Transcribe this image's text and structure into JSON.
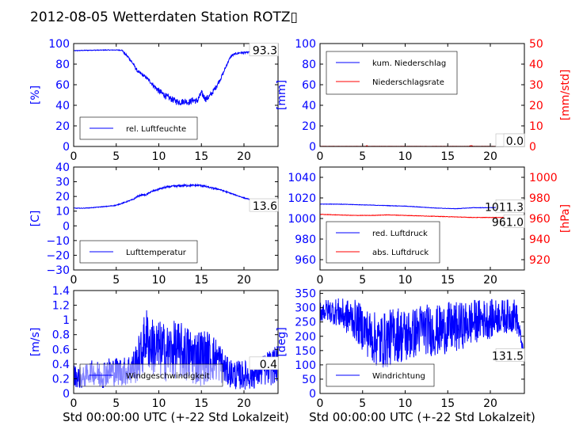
{
  "figure": {
    "title": "2012-08-05 Wetterdaten Station ROTZ▯",
    "xlabel": "Std 00:00:00 UTC (+-22 Std Lokalzeit)"
  },
  "colors": {
    "blue": "#0000ff",
    "red": "#ff0000",
    "light_blue": "#8080ff",
    "black": "#000000"
  },
  "chart_data": [
    {
      "type": "line",
      "xlim": [
        0,
        24
      ],
      "ylim": [
        0,
        100
      ],
      "xticks": [
        0,
        5,
        10,
        15,
        20
      ],
      "yticks": [
        0,
        20,
        40,
        60,
        80,
        100
      ],
      "ylabel": "[%]",
      "value_label": "93.3",
      "legend": {
        "placement": "lower-center",
        "entries": [
          "rel. Luftfeuchte"
        ]
      },
      "series": [
        {
          "name": "rel. Luftfeuchte",
          "color": "#0000ff",
          "x": [
            0,
            1,
            2,
            3,
            4,
            5,
            5.7,
            6,
            6.5,
            7,
            7.5,
            8,
            8.5,
            9,
            9.5,
            10,
            10.5,
            11,
            11.5,
            12,
            12.5,
            13,
            13.5,
            14,
            14.5,
            15,
            15.5,
            16,
            16.5,
            17,
            17.5,
            18,
            18.5,
            19,
            19.5,
            20,
            21,
            22,
            23,
            24
          ],
          "y": [
            93,
            93.3,
            93.5,
            93.6,
            93.7,
            93.7,
            93.5,
            90,
            86,
            80,
            73,
            70,
            67,
            63,
            58,
            54,
            51,
            48,
            46,
            44,
            43,
            44,
            43,
            45,
            44,
            52,
            46,
            49,
            55,
            62,
            70,
            80,
            88,
            90,
            91,
            91,
            92,
            93,
            93.3,
            93.3
          ],
          "noise": [
            0.3,
            0.3,
            0.3,
            0.3,
            0.3,
            0.3,
            0.5,
            1,
            1.5,
            1.5,
            1.5,
            1.5,
            1.5,
            2,
            2.5,
            3,
            3,
            3,
            3,
            3,
            3,
            3,
            3,
            3,
            3,
            3,
            3,
            3,
            2.5,
            2,
            2,
            1.5,
            1,
            1,
            1,
            1,
            0.5,
            0.5,
            0.3,
            0.3
          ]
        }
      ]
    },
    {
      "type": "line",
      "xlim": [
        0,
        24
      ],
      "ylim": [
        0,
        100
      ],
      "ylim_right": [
        0,
        50
      ],
      "xticks": [
        0,
        5,
        10,
        15,
        20
      ],
      "yticks": [
        0,
        20,
        40,
        60,
        80,
        100
      ],
      "yticks_right": [
        0,
        10,
        20,
        30,
        40,
        50
      ],
      "ylabel": "[mm]",
      "ylabel_right": "[mm/std]",
      "value_label": "0.0",
      "value_label_right": "0.0",
      "legend": {
        "placement": "top-left",
        "entries": [
          "kum. Niederschlag",
          "Niederschlagsrate"
        ]
      },
      "series": [
        {
          "name": "kum. Niederschlag",
          "color": "#0000ff",
          "axis": "left",
          "x": [
            0,
            24
          ],
          "y": [
            0,
            0
          ],
          "noise": [
            0,
            0
          ]
        },
        {
          "name": "Niederschlagsrate",
          "color": "#ff0000",
          "axis": "right",
          "x": [
            0,
            5.4,
            5.5,
            5.6,
            17.5,
            17.6,
            17.8,
            18,
            24
          ],
          "y": [
            0.05,
            0.05,
            0.5,
            0.05,
            0.05,
            0.3,
            0.4,
            0.05,
            0.05
          ],
          "noise": [
            0.03,
            0.03,
            0,
            0.03,
            0.03,
            0,
            0,
            0.03,
            0.03
          ]
        }
      ]
    },
    {
      "type": "line",
      "xlim": [
        0,
        24
      ],
      "ylim": [
        -30,
        40
      ],
      "xticks": [
        0,
        5,
        10,
        15,
        20
      ],
      "yticks": [
        -30,
        -20,
        -10,
        0,
        10,
        20,
        30,
        40
      ],
      "ylabel": "[C]",
      "value_label": "13.6",
      "legend": {
        "placement": "lower-center",
        "entries": [
          "Lufttemperatur"
        ]
      },
      "series": [
        {
          "name": "Lufttemperatur",
          "color": "#0000ff",
          "x": [
            0,
            1,
            2,
            3,
            4,
            5,
            6,
            7,
            7.5,
            8,
            8.5,
            9,
            10,
            11,
            12,
            13,
            14,
            15,
            16,
            17,
            18,
            19,
            20,
            21,
            22,
            23,
            24
          ],
          "y": [
            12,
            12,
            12.3,
            12.8,
            13.3,
            14,
            16,
            18,
            20,
            21,
            21,
            23,
            25,
            26.5,
            27,
            27.5,
            27.5,
            27.5,
            26,
            25,
            23,
            21,
            19,
            17.5,
            16.5,
            15,
            13.6
          ],
          "noise": [
            0.2,
            0.2,
            0.2,
            0.2,
            0.2,
            0.3,
            0.3,
            0.4,
            0.5,
            0.5,
            0.5,
            0.6,
            0.7,
            0.7,
            0.7,
            0.7,
            0.7,
            0.7,
            0.6,
            0.5,
            0.4,
            0.3,
            0.3,
            0.3,
            0.3,
            0.3,
            0.3
          ]
        }
      ]
    },
    {
      "type": "line",
      "xlim": [
        0,
        24
      ],
      "ylim": [
        950,
        1050
      ],
      "ylim_right": [
        910,
        1010
      ],
      "xticks": [
        0,
        5,
        10,
        15,
        20
      ],
      "yticks": [
        960,
        980,
        1000,
        1020,
        1040
      ],
      "yticks_right": [
        920,
        940,
        960,
        980,
        1000
      ],
      "ylabel": "",
      "ylabel_right": "[hPa]",
      "value_label": "1011.3",
      "value_label_right": "961.0",
      "legend": {
        "placement": "lower-center",
        "entries": [
          "red. Luftdruck",
          "abs. Luftdruck"
        ]
      },
      "series": [
        {
          "name": "red. Luftdruck",
          "color": "#0000ff",
          "axis": "left",
          "x": [
            0,
            2,
            4,
            6,
            8,
            10,
            12,
            14,
            16,
            17,
            18,
            20,
            22,
            24
          ],
          "y": [
            1014,
            1014,
            1013.5,
            1013,
            1012.5,
            1012,
            1011,
            1010,
            1009.5,
            1010,
            1010.5,
            1010.5,
            1011,
            1011.3
          ],
          "noise": [
            0.2,
            0.2,
            0.2,
            0.2,
            0.2,
            0.2,
            0.2,
            0.2,
            0.2,
            0.2,
            0.2,
            0.2,
            0.2,
            0.2
          ]
        },
        {
          "name": "abs. Luftdruck",
          "color": "#ff0000",
          "axis": "right",
          "x": [
            0,
            2,
            4,
            6,
            8,
            10,
            12,
            14,
            16,
            18,
            20,
            22,
            24
          ],
          "y": [
            964,
            963.5,
            963,
            963,
            963.5,
            963,
            962.5,
            962,
            961.5,
            961,
            961,
            961,
            961
          ],
          "noise": [
            0.2,
            0.2,
            0.2,
            0.2,
            0.2,
            0.2,
            0.2,
            0.2,
            0.2,
            0.2,
            0.2,
            0.2,
            0.2
          ]
        }
      ]
    },
    {
      "type": "line",
      "xlim": [
        0,
        24
      ],
      "ylim": [
        0,
        1.4
      ],
      "xticks": [
        0,
        5,
        10,
        15,
        20
      ],
      "yticks": [
        0,
        0.2,
        0.4,
        0.6,
        0.8,
        1.0,
        1.2,
        1.4
      ],
      "ylabel": "[m/s]",
      "value_label": "0.4",
      "legend": {
        "placement": "lower-center",
        "entries": [
          "Windgeschwindigkeit"
        ]
      },
      "series": [
        {
          "name": "Windgeschwindigkeit",
          "color": "#0000ff",
          "x": [
            0,
            1,
            2,
            3,
            4,
            5,
            6,
            7,
            8,
            8.5,
            9,
            10,
            11,
            12,
            13,
            14,
            15,
            16,
            17,
            18,
            19,
            20,
            21,
            22,
            23,
            24
          ],
          "y": [
            0.25,
            0.2,
            0.3,
            0.25,
            0.3,
            0.3,
            0.3,
            0.35,
            0.55,
            0.8,
            0.65,
            0.6,
            0.55,
            0.6,
            0.55,
            0.5,
            0.5,
            0.5,
            0.45,
            0.3,
            0.25,
            0.25,
            0.25,
            0.3,
            0.35,
            0.4
          ],
          "noise": [
            0.15,
            0.15,
            0.15,
            0.2,
            0.2,
            0.2,
            0.2,
            0.25,
            0.35,
            0.4,
            0.4,
            0.4,
            0.4,
            0.4,
            0.4,
            0.4,
            0.4,
            0.35,
            0.3,
            0.2,
            0.2,
            0.2,
            0.2,
            0.2,
            0.25,
            0.25
          ]
        }
      ]
    },
    {
      "type": "line",
      "xlim": [
        0,
        24
      ],
      "ylim": [
        0,
        360
      ],
      "xticks": [
        0,
        5,
        10,
        15,
        20
      ],
      "yticks": [
        0,
        50,
        100,
        150,
        200,
        250,
        300,
        350
      ],
      "ylabel": "[deg]",
      "value_label": "131.5",
      "legend": {
        "placement": "lower-center",
        "entries": [
          "Windrichtung"
        ]
      },
      "series": [
        {
          "name": "Windrichtung",
          "color": "#0000ff",
          "x": [
            0,
            1,
            2,
            3,
            4,
            5,
            6,
            7,
            8,
            9,
            10,
            11,
            12,
            13,
            14,
            15,
            16,
            17,
            18,
            19,
            20,
            21,
            22,
            23,
            24
          ],
          "y": [
            290,
            290,
            285,
            270,
            260,
            230,
            200,
            180,
            190,
            210,
            200,
            210,
            230,
            220,
            220,
            230,
            230,
            240,
            250,
            260,
            260,
            270,
            270,
            275,
            131.5
          ],
          "noise": [
            40,
            40,
            50,
            60,
            70,
            80,
            90,
            100,
            100,
            100,
            100,
            90,
            90,
            90,
            90,
            90,
            90,
            80,
            80,
            70,
            70,
            60,
            60,
            60,
            0
          ]
        }
      ]
    }
  ]
}
